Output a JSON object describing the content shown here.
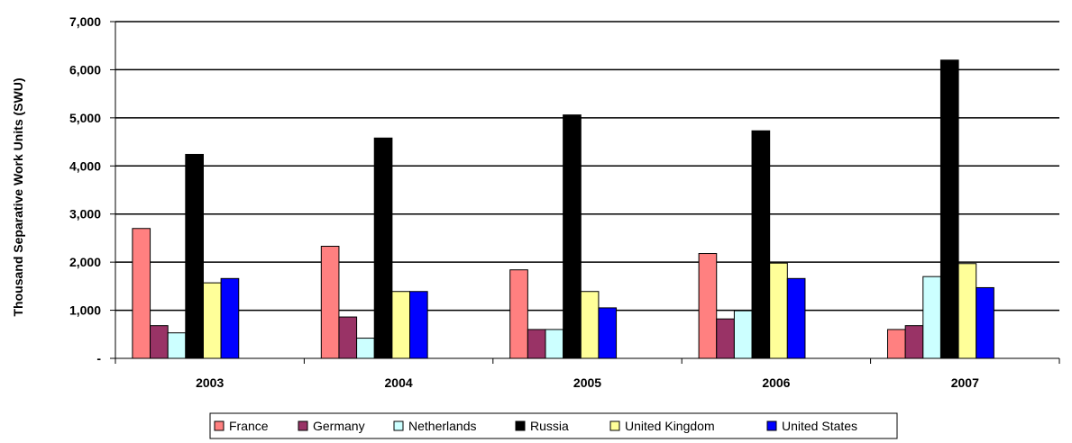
{
  "chart_data": {
    "type": "bar",
    "title": "",
    "xlabel": "",
    "ylabel": "Thousand Separative Work Units (SWU)",
    "categories": [
      "2003",
      "2004",
      "2005",
      "2006",
      "2007"
    ],
    "ylim": [
      0,
      7000
    ],
    "yticks": [
      0,
      1000,
      2000,
      3000,
      4000,
      5000,
      6000,
      7000
    ],
    "ytick_labels": [
      "-",
      "1,000",
      "2,000",
      "3,000",
      "4,000",
      "5,000",
      "6,000",
      "7,000"
    ],
    "grid": true,
    "legend_position": "bottom",
    "series": [
      {
        "name": "France",
        "color": "#ff8080",
        "values": [
          2700,
          2330,
          1840,
          2180,
          600
        ]
      },
      {
        "name": "Germany",
        "color": "#993366",
        "values": [
          680,
          860,
          600,
          820,
          680
        ]
      },
      {
        "name": "Netherlands",
        "color": "#ccffff",
        "values": [
          530,
          420,
          600,
          990,
          1700
        ]
      },
      {
        "name": "Russia",
        "color": "#000000",
        "values": [
          4240,
          4580,
          5060,
          4730,
          6200
        ]
      },
      {
        "name": "United Kingdom",
        "color": "#ffff99",
        "values": [
          1570,
          1390,
          1390,
          1980,
          1970
        ]
      },
      {
        "name": "United States",
        "color": "#0000ff",
        "values": [
          1660,
          1390,
          1050,
          1660,
          1470
        ]
      }
    ]
  }
}
